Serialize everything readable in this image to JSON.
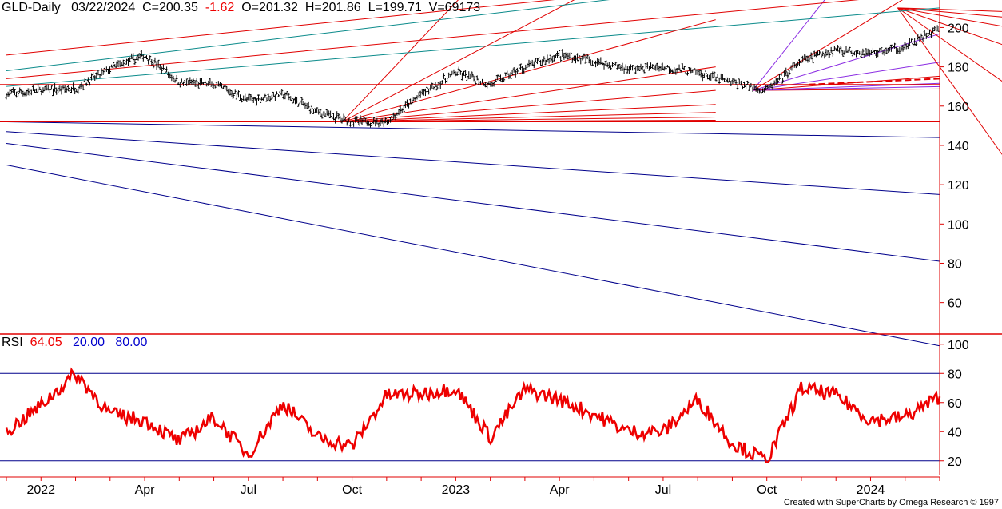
{
  "header": {
    "symbol": "GLD-Daily",
    "date": "03/22/2024",
    "close": "C=200.35",
    "change": "-1.62",
    "open": "O=201.32",
    "high": "H=201.86",
    "low": "L=199.71",
    "volume": "V=69173"
  },
  "rsi_header": {
    "name": "RSI",
    "value": "64.05",
    "level_low": "20.00",
    "level_high": "80.00"
  },
  "credit": "Created with SuperCharts by Omega Research © 1997",
  "colors": {
    "background": "#ffffff",
    "price_bars": "#000000",
    "fan_red": "#e00000",
    "fan_purple": "#8a2be2",
    "fan_teal": "#0a8a8a",
    "fan_blue": "#00008b",
    "rsi_line": "#ee0000",
    "rsi_levels": "#00008b",
    "header_text": "#000000",
    "header_change": "#ee0000",
    "rsi_value": "#ee0000",
    "rsi_level_text": "#0000cc"
  },
  "chart_data": [
    {
      "type": "line",
      "subtype": "ohlc-bars",
      "symbol": "GLD",
      "interval": "Daily",
      "y_ticks": [
        60,
        80,
        100,
        120,
        140,
        160,
        180,
        200
      ],
      "ylim": [
        44,
        214
      ],
      "x_tick_labels": [
        "2022",
        "Apr",
        "Jul",
        "Oct",
        "2023",
        "Apr",
        "Jul",
        "Oct",
        "2024"
      ],
      "x": [
        "2021-12",
        "2022-01",
        "2022-02",
        "2022-03",
        "2022-04",
        "2022-05",
        "2022-06",
        "2022-07",
        "2022-08",
        "2022-09",
        "2022-10",
        "2022-11",
        "2022-12",
        "2023-01",
        "2023-02",
        "2023-03",
        "2023-04",
        "2023-05",
        "2023-06",
        "2023-07",
        "2023-08",
        "2023-09",
        "2023-10",
        "2023-11",
        "2023-12",
        "2024-01",
        "2024-02",
        "2024-03"
      ],
      "series": [
        {
          "values": [
            166,
            168,
            169,
            179,
            186,
            172,
            171,
            163,
            166,
            157,
            152,
            152,
            166,
            177,
            171,
            180,
            186,
            183,
            179,
            180,
            177,
            172,
            168,
            183,
            189,
            187,
            190,
            200
          ]
        }
      ],
      "last_bar": {
        "date": "03/22/2024",
        "open": 201.32,
        "high": 201.86,
        "low": 199.71,
        "close": 200.35,
        "change": -1.62,
        "volume": 69173
      },
      "annotations": "Gann fan lines drawn in red, purple, teal and dark blue from pivot points"
    },
    {
      "type": "line",
      "name": "RSI",
      "y_ticks": [
        20,
        40,
        60,
        80,
        100
      ],
      "ylim": [
        10,
        107
      ],
      "levels": [
        20,
        80
      ],
      "last_value": 64.05,
      "x": [
        "2021-12",
        "2022-01",
        "2022-02",
        "2022-03",
        "2022-04",
        "2022-05",
        "2022-06",
        "2022-07",
        "2022-08",
        "2022-09",
        "2022-10",
        "2022-11",
        "2022-12",
        "2023-01",
        "2023-02",
        "2023-03",
        "2023-04",
        "2023-05",
        "2023-06",
        "2023-07",
        "2023-08",
        "2023-09",
        "2023-10",
        "2023-11",
        "2023-12",
        "2024-01",
        "2024-02",
        "2024-03"
      ],
      "values": [
        40,
        58,
        80,
        52,
        48,
        33,
        50,
        24,
        60,
        36,
        30,
        65,
        66,
        70,
        36,
        69,
        62,
        52,
        40,
        40,
        62,
        32,
        20,
        70,
        65,
        48,
        50,
        64
      ]
    }
  ]
}
